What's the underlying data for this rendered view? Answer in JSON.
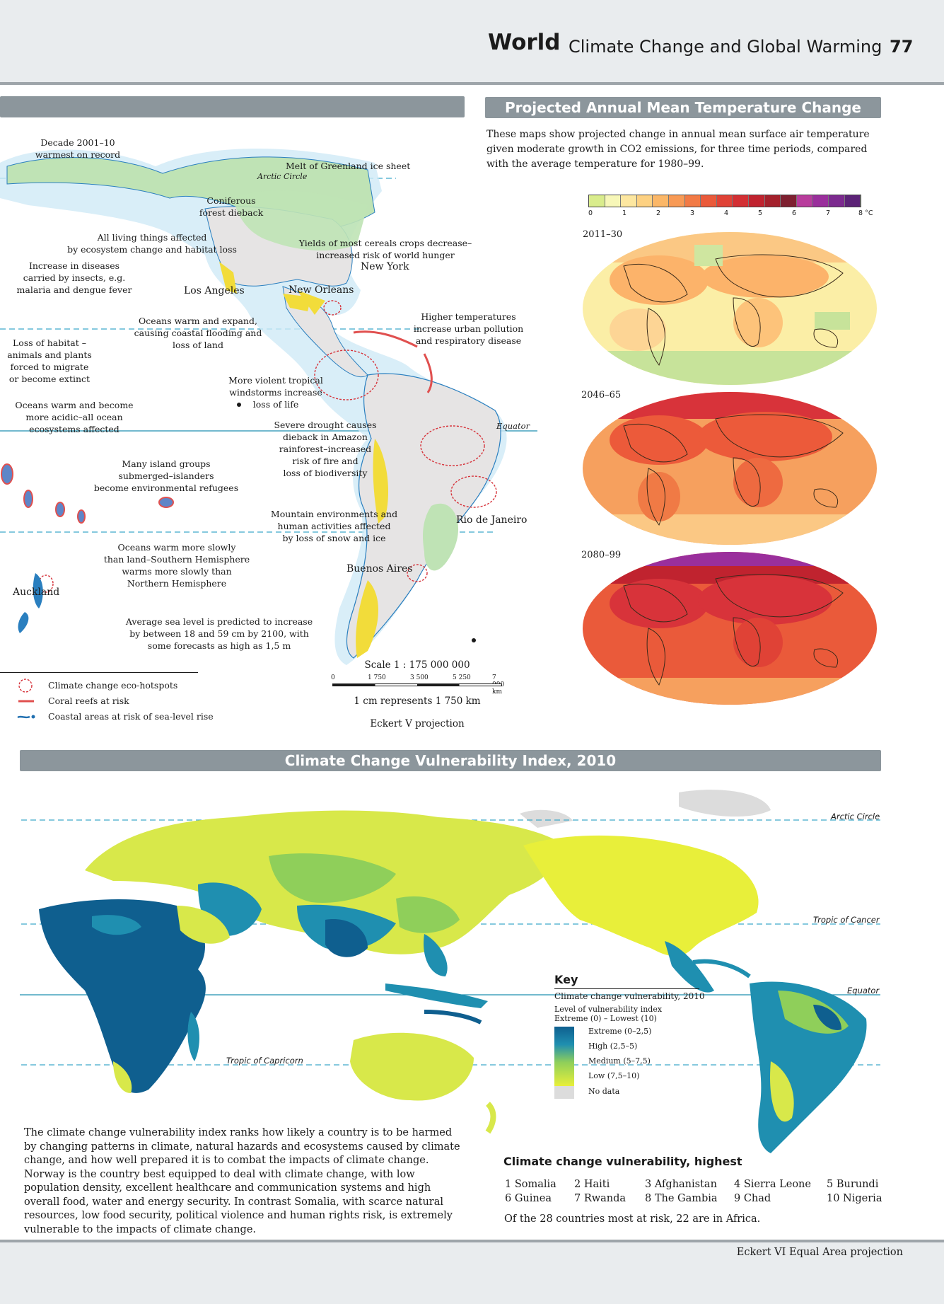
{
  "header": {
    "section": "World",
    "title": "Climate Change and Global Warming",
    "page_number": "77"
  },
  "world_map": {
    "labels": {
      "decade": "Decade 2001–10\nwarmest on record",
      "greenland": "Melt of Greenland ice sheet",
      "arctic_circle": "Arctic Circle",
      "coniferous": "Coniferous\nforest dieback",
      "living_things": "All living things affected\nby ecosystem change and habitat loss",
      "diseases": "Increase in diseases\ncarried by insects, e.g.\nmalaria and dengue fever",
      "yields": "Yields of most cereals crops decrease–\nincreased risk of world hunger",
      "new_york": "New York",
      "los_angeles": "Los Angeles",
      "new_orleans": "New Orleans",
      "oceans_expand": "Oceans warm and expand,\ncausing coastal flooding and\nloss of land",
      "higher_temps": "Higher temperatures\nincrease urban pollution\nand respiratory disease",
      "loss_habitat": "Loss of habitat –\nanimals and plants\nforced to migrate\nor become extinct",
      "storms": "More violent tropical\nwindstorms increase\nloss of life",
      "acidic": "Oceans warm and become\nmore acidic–all ocean\necosystems affected",
      "drought": "Severe drought causes\ndieback in Amazon\nrainforest–increased\nrisk of fire and\nloss of biodiversity",
      "equator": "Equator",
      "islands": "Many island groups\nsubmerged–islanders\nbecome environmental refugees",
      "mountain": "Mountain environments and\nhuman activities affected\nby loss of snow and ice",
      "rio": "Rio de Janeiro",
      "oceans_slow": "Oceans warm more slowly\nthan land–Southern Hemisphere\nwarms more slowly than\nNorthern Hemisphere",
      "buenos_aires": "Buenos Aires",
      "auckland": "Auckland",
      "sea_level": "Average sea level is predicted to increase\nby between 18 and 59 cm by 2100, with\nsome forecasts as high as 1,5 m"
    },
    "legend": [
      {
        "label": "Climate change eco-hotspots",
        "icon": "hotspot-circle-icon",
        "color": "#d6323a"
      },
      {
        "label": "Coral reefs at risk",
        "icon": "coral-line-icon",
        "color": "#e0504f"
      },
      {
        "label": "Coastal areas at risk of sea-level rise",
        "icon": "coastline-icon",
        "color": "#1f6fb0"
      }
    ],
    "scale": {
      "title": "Scale 1 : 175 000 000",
      "ticks": [
        "0",
        "1 750",
        "3 500",
        "5 250",
        "7 000 km"
      ],
      "note": "1 cm represents 1 750 km",
      "projection": "Eckert V projection"
    }
  },
  "temperature": {
    "title": "Projected Annual Mean Temperature Change",
    "description": "These maps show projected change in annual mean surface air temperature given moderate growth in CO2 emissions, for three time periods, compared with the average temperature for 1980–99.",
    "scale_ticks": [
      "0",
      "1",
      "2",
      "3",
      "4",
      "5",
      "6",
      "7",
      "8 °C"
    ],
    "scale_colors": [
      "#d9ec8c",
      "#f7f7b8",
      "#fde7a0",
      "#fdd182",
      "#fbb768",
      "#f89a55",
      "#f27a45",
      "#ea5a3a",
      "#e04236",
      "#d32f33",
      "#c0232f",
      "#a4212c",
      "#7e2030",
      "#b83c9c",
      "#9a2f9c",
      "#7c2a8f",
      "#5c2377"
    ],
    "periods": [
      "2011–30",
      "2046–65",
      "2080–99"
    ]
  },
  "vulnerability": {
    "title": "Climate Change Vulnerability Index, 2010",
    "lines": {
      "arctic": "Arctic Circle",
      "cancer": "Tropic of Cancer",
      "equator": "Equator",
      "capricorn": "Tropic of Capricorn"
    },
    "key": {
      "title": "Key",
      "subtitle": "Climate change vulnerability, 2010",
      "index_label": "Level of vulnerability index",
      "range_label": "Extreme (0) – Lowest (10)",
      "items": [
        {
          "label": "Extreme (0–2,5)",
          "color": "#0f5f8f"
        },
        {
          "label": "High (2,5–5)",
          "color": "#1f8fb0"
        },
        {
          "label": "Medium (5–7,5)",
          "color": "#8fcf5a"
        },
        {
          "label": "Low (7,5–10)",
          "color": "#e8ef3a"
        },
        {
          "label": "No data",
          "color": "#dcdcdc"
        }
      ]
    },
    "paragraph": "The climate change vulnerability index ranks how likely a country is to be harmed by changing patterns in climate, natural hazards and ecosystems caused by climate change, and how well prepared it is to combat the impacts of climate change. Norway is the country best equipped to deal with climate change, with low population density, excellent healthcare and communication systems and high overall food, water and energy security. In contrast Somalia, with scarce natural resources, low food security, political violence and human rights risk, is extremely vulnerable to the impacts of climate change.",
    "highest_title": "Climate change vulnerability, highest",
    "highest": [
      [
        "1 Somalia",
        "6 Guinea"
      ],
      [
        "2 Haiti",
        "7 Rwanda"
      ],
      [
        "3 Afghanistan",
        "8 The Gambia"
      ],
      [
        "4 Sierra Leone",
        "9 Chad"
      ],
      [
        "5 Burundi",
        "10 Nigeria"
      ]
    ],
    "africa_note": "Of the 28 countries most at risk, 22 are in Africa.",
    "projection": "Eckert VI Equal Area projection"
  }
}
